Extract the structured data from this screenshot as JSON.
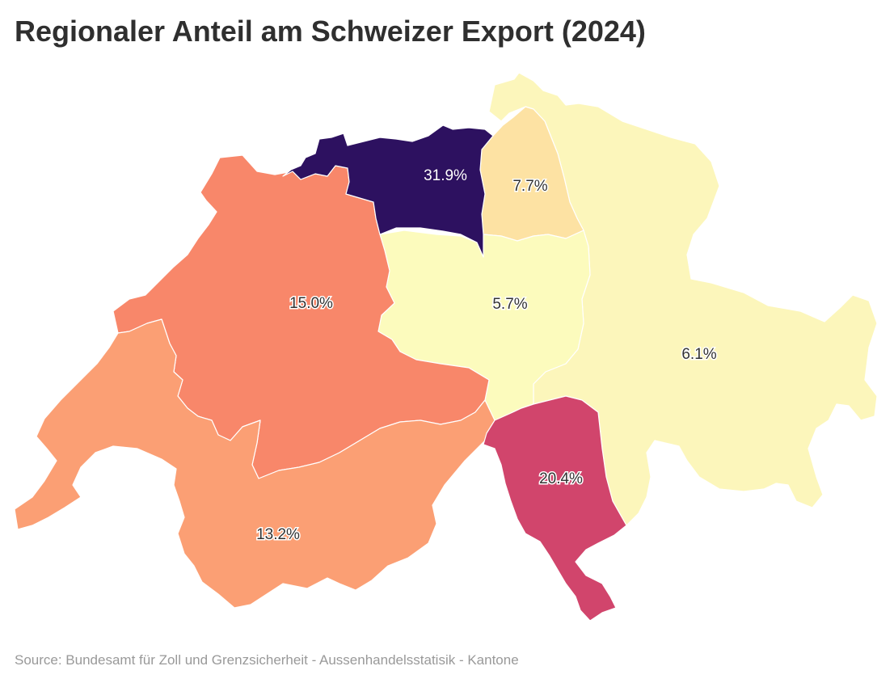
{
  "title": "Regionaler Anteil am Schweizer Export (2024)",
  "source": "Source: Bundesamt für Zoll und Grenzsicherheit - Aussenhandelsstatisik - Kantone",
  "regions": [
    {
      "id": "nordwestschweiz",
      "value_label": "31.9%",
      "value": 31.9,
      "color": "#2d1160"
    },
    {
      "id": "zuerich",
      "value_label": "7.7%",
      "value": 7.7,
      "color": "#fde2a3"
    },
    {
      "id": "espace-mittelland",
      "value_label": "15.0%",
      "value": 15.0,
      "color": "#f8876a"
    },
    {
      "id": "zentralschweiz",
      "value_label": "5.7%",
      "value": 5.7,
      "color": "#fcfbbd"
    },
    {
      "id": "ostschweiz",
      "value_label": "6.1%",
      "value": 6.1,
      "color": "#fcf6bb"
    },
    {
      "id": "genferseeregion",
      "value_label": "13.2%",
      "value": 13.2,
      "color": "#fb9f74"
    },
    {
      "id": "tessin",
      "value_label": "20.4%",
      "value": 20.4,
      "color": "#d1456c"
    }
  ]
}
